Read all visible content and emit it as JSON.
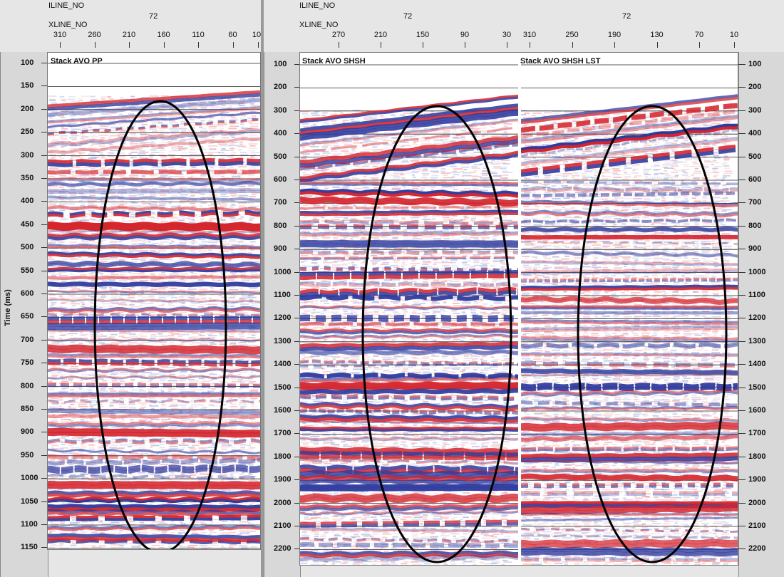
{
  "left_view": {
    "iline_label": "ILINE_NO",
    "iline_value": "72",
    "xline_label": "XLINE_NO",
    "xline_ticks": [
      "310",
      "260",
      "210",
      "160",
      "110",
      "60",
      "10"
    ],
    "panel_title": "Stack AVO PP",
    "y_axis_label": "Time (ms)",
    "time_ticks": [
      "100",
      "150",
      "200",
      "250",
      "300",
      "350",
      "400",
      "450",
      "500",
      "550",
      "600",
      "650",
      "700",
      "750",
      "800",
      "850",
      "900",
      "950",
      "1000",
      "1050",
      "1100",
      "1150"
    ]
  },
  "right_view": {
    "iline_label": "ILINE_NO",
    "iline_values": [
      "72",
      "72"
    ],
    "xline_label": "XLINE_NO",
    "xline_ticks_a": [
      "270",
      "210",
      "150",
      "90",
      "30"
    ],
    "xline_ticks_b": [
      "310",
      "250",
      "190",
      "130",
      "70",
      "10"
    ],
    "panel_titles": [
      "Stack AVO SHSH",
      "Stack AVO SHSH LST"
    ],
    "time_ticks_left": [
      "100",
      "200",
      "300",
      "400",
      "500",
      "600",
      "700",
      "800",
      "900",
      "1000",
      "1100",
      "1200",
      "1300",
      "1400",
      "1500",
      "1600",
      "1700",
      "1800",
      "1900",
      "2000",
      "2100",
      "2200"
    ],
    "time_ticks_right": [
      "100",
      "200",
      "300",
      "400",
      "500",
      "600",
      "700",
      "800",
      "900",
      "1000",
      "1100",
      "1200",
      "1300",
      "1400",
      "1500",
      "1600",
      "1700",
      "1800",
      "1900",
      "2000",
      "2100",
      "2200"
    ]
  },
  "colors": {
    "positive": "#d4242c",
    "negative": "#2e3a9e",
    "highlight_ellipse": "#000000"
  },
  "highlight_shapes": [
    "ellipse",
    "ellipse",
    "ellipse"
  ]
}
